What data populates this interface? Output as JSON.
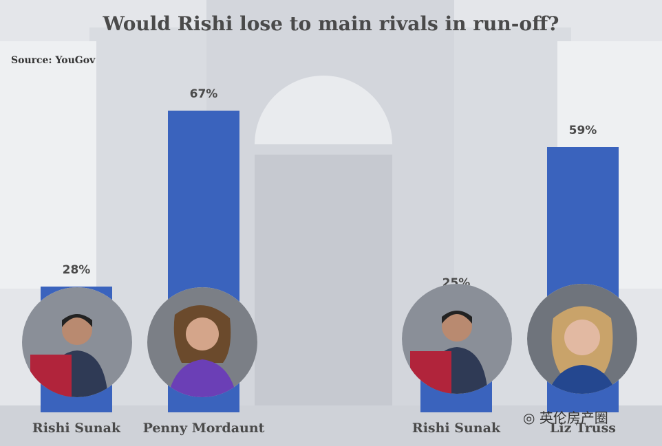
{
  "chart_data": {
    "type": "bar",
    "title": "Would Rishi lose to main rivals in run-off?",
    "source": "Source: YouGov",
    "categories": [
      "Rishi Sunak",
      "Penny Mordaunt",
      "Rishi Sunak",
      "Liz Truss"
    ],
    "values": [
      28,
      67,
      25,
      59
    ],
    "value_labels": [
      "28%",
      "67%",
      "25%",
      "59%"
    ],
    "ylim": [
      0,
      100
    ],
    "bar_color": "#3a63bd"
  },
  "watermark": "英伦房产圈",
  "icons": [
    "wechat-icon"
  ]
}
